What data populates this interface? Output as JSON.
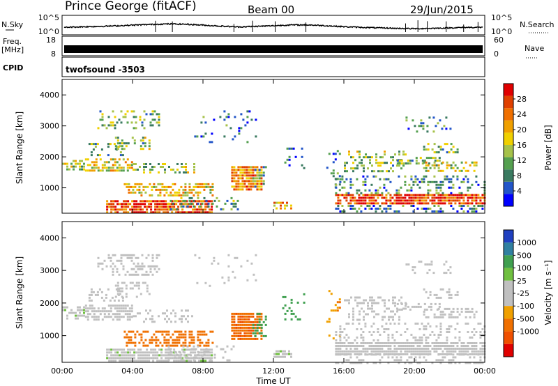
{
  "header": {
    "station": "Prince George (fitACF)",
    "beam": "Beam 00",
    "date": "29/Jun/2015"
  },
  "top_panels": {
    "nsky_label": "N.Sky",
    "nsky_ticks": [
      "10^5",
      "10^0"
    ],
    "nsearch_label": "N.Search",
    "freq_label_line1": "Freq.",
    "freq_label_line2": "[MHz]",
    "freq_ticks": [
      "18",
      "8"
    ],
    "nave_ticks": [
      "60",
      "0"
    ],
    "nave_label": "Nave",
    "cpid_label": "CPID",
    "cpid_value": "twofsound -3503"
  },
  "colors": {
    "power_scale": [
      "#0000ff",
      "#2255c8",
      "#3a7a60",
      "#55a050",
      "#a6c24a",
      "#f0d000",
      "#f0a000",
      "#f07000",
      "#e04000",
      "#e00000"
    ],
    "velocity_scale": [
      "#2040c0",
      "#3080a0",
      "#40a050",
      "#70c040",
      "#c0c0c0",
      "#c0c0c0",
      "#f0a000",
      "#f07000",
      "#f05000",
      "#e00000"
    ],
    "ground_scatter": "#b0b0b0"
  },
  "chart_data": [
    {
      "type": "heatmap",
      "name": "power",
      "ylabel": "Slant Range [km]",
      "yticks": [
        "1000",
        "2000",
        "3000",
        "4000"
      ],
      "ylim": [
        180,
        4500
      ],
      "xlim_hours": [
        0,
        24
      ],
      "colorbar_label": "Power [dB]",
      "colorbar_ticks": [
        "4",
        "8",
        "12",
        "16",
        "20",
        "24",
        "28"
      ],
      "colorbar_range": [
        0,
        32
      ]
    },
    {
      "type": "heatmap",
      "name": "velocity",
      "ylabel": "Slant Range [km]",
      "yticks": [
        "1000",
        "2000",
        "3000",
        "4000"
      ],
      "ylim": [
        180,
        4500
      ],
      "xlim_hours": [
        0,
        24
      ],
      "colorbar_label": "Velocity [m s⁻¹]",
      "colorbar_ticks": [
        "-1000",
        "-500",
        "-100",
        "-25",
        "25",
        "100",
        "500",
        "1000"
      ]
    }
  ],
  "x_axis": {
    "label": "Time UT",
    "ticks": [
      "00:00",
      "04:00",
      "08:00",
      "12:00",
      "16:00",
      "20:00",
      "00:00"
    ]
  },
  "scatter_patches": [
    {
      "t0": 0.0,
      "t1": 1.3,
      "r0": 1550,
      "r1": 1900,
      "pw": 14,
      "v": 10,
      "d": 0.55
    },
    {
      "t0": 1.3,
      "t1": 4.0,
      "r0": 1500,
      "r1": 1950,
      "pw": 17,
      "v": 5,
      "d": 0.6
    },
    {
      "t0": 1.5,
      "t1": 3.5,
      "r0": 2050,
      "r1": 2450,
      "pw": 12,
      "v": 5,
      "d": 0.35
    },
    {
      "t0": 3.0,
      "t1": 5.0,
      "r0": 2200,
      "r1": 2650,
      "pw": 13,
      "v": 5,
      "d": 0.35
    },
    {
      "t0": 2.0,
      "t1": 5.5,
      "r0": 2900,
      "r1": 3500,
      "pw": 12,
      "v": 5,
      "d": 0.3
    },
    {
      "t0": 4.0,
      "t1": 7.5,
      "r0": 1450,
      "r1": 1800,
      "pw": 14,
      "v": 5,
      "d": 0.3
    },
    {
      "t0": 3.5,
      "t1": 8.5,
      "r0": 700,
      "r1": 1150,
      "pw": 19,
      "v": -200,
      "d": 0.55
    },
    {
      "t0": 2.5,
      "t1": 8.5,
      "r0": 180,
      "r1": 600,
      "pw": 27,
      "v": 10,
      "d": 0.8
    },
    {
      "t0": 6.0,
      "t1": 10.0,
      "r0": 250,
      "r1": 700,
      "pw": 10,
      "v": 5,
      "d": 0.3
    },
    {
      "t0": 9.6,
      "t1": 11.3,
      "r0": 900,
      "r1": 1700,
      "pw": 22,
      "v": -450,
      "d": 0.85
    },
    {
      "t0": 10.8,
      "t1": 11.6,
      "r0": 1000,
      "r1": 1700,
      "pw": 10,
      "v": 300,
      "d": 0.35
    },
    {
      "t0": 12.0,
      "t1": 13.0,
      "r0": 350,
      "r1": 550,
      "pw": 20,
      "v": 10,
      "d": 0.6
    },
    {
      "t0": 12.5,
      "t1": 13.8,
      "r0": 1500,
      "r1": 2300,
      "pw": 6,
      "v": 200,
      "d": 0.15
    },
    {
      "t0": 15.0,
      "t1": 15.8,
      "r0": 900,
      "r1": 2400,
      "pw": 7,
      "v": -80,
      "d": 0.2
    },
    {
      "t0": 15.5,
      "t1": 24.0,
      "r0": 450,
      "r1": 800,
      "pw": 27,
      "v": 5,
      "d": 0.85
    },
    {
      "t0": 15.5,
      "t1": 24.0,
      "r0": 180,
      "r1": 450,
      "pw": 8,
      "v": 5,
      "d": 0.35
    },
    {
      "t0": 15.5,
      "t1": 24.0,
      "r0": 800,
      "r1": 1400,
      "pw": 9,
      "v": 5,
      "d": 0.25
    },
    {
      "t0": 16.0,
      "t1": 19.5,
      "r0": 1500,
      "r1": 2200,
      "pw": 13,
      "v": 5,
      "d": 0.3
    },
    {
      "t0": 19.0,
      "t1": 21.5,
      "r0": 1800,
      "r1": 2000,
      "pw": 12,
      "v": 5,
      "d": 0.4
    },
    {
      "t0": 20.5,
      "t1": 23.5,
      "r0": 1550,
      "r1": 1850,
      "pw": 16,
      "v": 5,
      "d": 0.45
    },
    {
      "t0": 20.5,
      "t1": 22.5,
      "r0": 2150,
      "r1": 2450,
      "pw": 13,
      "v": 5,
      "d": 0.35
    },
    {
      "t0": 19.5,
      "t1": 22.0,
      "r0": 2800,
      "r1": 3300,
      "pw": 8,
      "v": 5,
      "d": 0.15
    },
    {
      "t0": 7.5,
      "t1": 11.0,
      "r0": 2500,
      "r1": 3500,
      "pw": 6,
      "v": 5,
      "d": 0.08
    }
  ],
  "nsky_curve": [
    [
      0,
      0.55
    ],
    [
      1,
      0.6
    ],
    [
      2,
      0.65
    ],
    [
      3,
      0.7
    ],
    [
      4,
      0.78
    ],
    [
      5,
      0.85
    ],
    [
      6,
      0.9
    ],
    [
      7,
      0.88
    ],
    [
      8,
      0.78
    ],
    [
      9,
      0.68
    ],
    [
      10,
      0.6
    ],
    [
      11,
      0.65
    ],
    [
      12,
      0.72
    ],
    [
      13,
      0.8
    ],
    [
      14,
      0.8
    ],
    [
      15,
      0.72
    ],
    [
      16,
      0.62
    ],
    [
      17,
      0.55
    ],
    [
      18,
      0.5
    ],
    [
      19,
      0.45
    ],
    [
      20,
      0.42
    ],
    [
      21,
      0.45
    ],
    [
      22,
      0.5
    ],
    [
      23,
      0.55
    ],
    [
      24,
      0.55
    ]
  ]
}
